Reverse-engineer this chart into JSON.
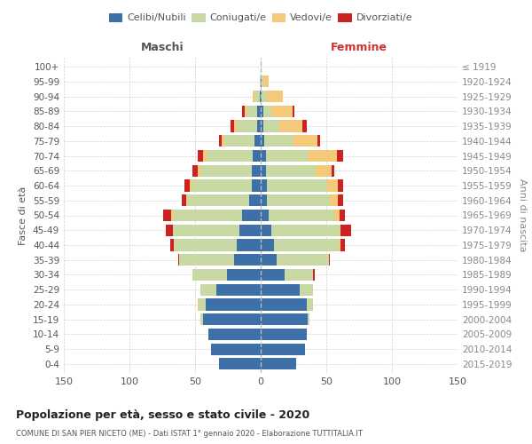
{
  "age_groups": [
    "100+",
    "95-99",
    "90-94",
    "85-89",
    "80-84",
    "75-79",
    "70-74",
    "65-69",
    "60-64",
    "55-59",
    "50-54",
    "45-49",
    "40-44",
    "35-39",
    "30-34",
    "25-29",
    "20-24",
    "15-19",
    "10-14",
    "5-9",
    "0-4"
  ],
  "birth_years": [
    "≤ 1919",
    "1920-1924",
    "1925-1929",
    "1930-1934",
    "1935-1939",
    "1940-1944",
    "1945-1949",
    "1950-1954",
    "1955-1959",
    "1960-1964",
    "1965-1969",
    "1970-1974",
    "1975-1979",
    "1980-1984",
    "1985-1989",
    "1990-1994",
    "1995-1999",
    "2000-2004",
    "2005-2009",
    "2010-2014",
    "2015-2019"
  ],
  "colors": {
    "celibi": "#3d6fa8",
    "coniugati": "#c8d9a4",
    "vedovi": "#f5c97a",
    "divorziati": "#cc2222"
  },
  "males": {
    "celibi": [
      0,
      0,
      1,
      3,
      3,
      5,
      6,
      7,
      7,
      9,
      14,
      16,
      18,
      20,
      26,
      34,
      42,
      44,
      40,
      38,
      32
    ],
    "coniugati": [
      0,
      1,
      4,
      8,
      15,
      23,
      35,
      39,
      46,
      47,
      53,
      51,
      48,
      42,
      26,
      12,
      5,
      2,
      0,
      0,
      0
    ],
    "vedovi": [
      0,
      0,
      1,
      1,
      2,
      2,
      3,
      2,
      1,
      1,
      1,
      0,
      0,
      0,
      0,
      0,
      1,
      0,
      0,
      0,
      0
    ],
    "divorziati": [
      0,
      0,
      0,
      2,
      3,
      2,
      4,
      4,
      4,
      3,
      6,
      5,
      3,
      1,
      0,
      0,
      0,
      0,
      0,
      0,
      0
    ]
  },
  "females": {
    "nubili": [
      0,
      1,
      1,
      2,
      2,
      3,
      4,
      4,
      5,
      5,
      6,
      8,
      10,
      12,
      18,
      30,
      35,
      36,
      35,
      34,
      27
    ],
    "coniugate": [
      0,
      1,
      4,
      6,
      12,
      22,
      32,
      38,
      46,
      48,
      50,
      52,
      50,
      40,
      22,
      10,
      5,
      1,
      0,
      0,
      0
    ],
    "vedove": [
      0,
      4,
      12,
      16,
      18,
      18,
      22,
      12,
      8,
      6,
      4,
      1,
      1,
      0,
      0,
      0,
      0,
      0,
      0,
      0,
      0
    ],
    "divorziate": [
      0,
      0,
      0,
      2,
      3,
      2,
      5,
      2,
      4,
      4,
      4,
      8,
      3,
      1,
      1,
      0,
      0,
      0,
      0,
      0,
      0
    ]
  },
  "xlim": 150,
  "title": "Popolazione per età, sesso e stato civile - 2020",
  "subtitle": "COMUNE DI SAN PIER NICETO (ME) - Dati ISTAT 1° gennaio 2020 - Elaborazione TUTTITALIA.IT",
  "ylabel_left": "Fasce di età",
  "ylabel_right": "Anni di nascita",
  "header_left": "Maschi",
  "header_right": "Femmine"
}
